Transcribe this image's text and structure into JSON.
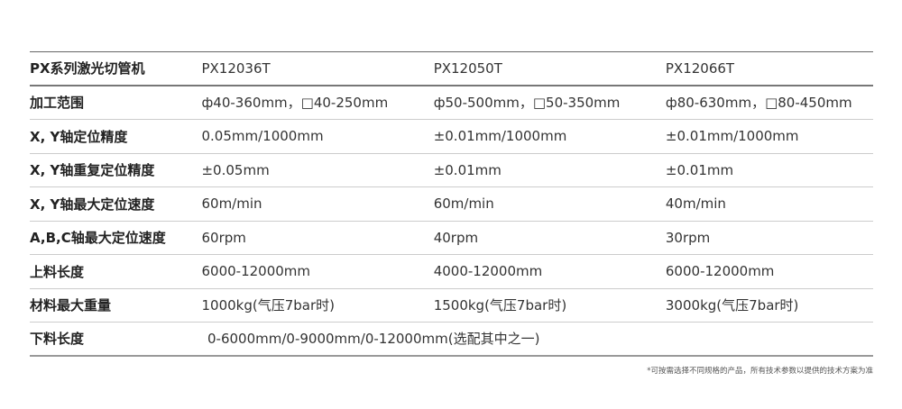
{
  "header": {
    "label": "PX系列激光切管机",
    "models": [
      "PX12036T",
      "PX12050T",
      "PX12066T"
    ]
  },
  "rows": [
    {
      "label": "加工范围",
      "values": [
        "ф40-360mm，□40-250mm",
        "ф50-500mm，□50-350mm",
        "ф80-630mm，□80-450mm"
      ]
    },
    {
      "label": "X, Y轴定位精度",
      "values": [
        "0.05mm/1000mm",
        "±0.01mm/1000mm",
        "±0.01mm/1000mm"
      ]
    },
    {
      "label": "X, Y轴重复定位精度",
      "values": [
        "±0.05mm",
        "±0.01mm",
        "±0.01mm"
      ]
    },
    {
      "label": "X, Y轴最大定位速度",
      "values": [
        "60m/min",
        "60m/min",
        "40m/min"
      ]
    },
    {
      "label": "A,B,C轴最大定位速度",
      "values": [
        "60rpm",
        "40rpm",
        "30rpm"
      ]
    },
    {
      "label": "上料长度",
      "values": [
        "6000-12000mm",
        "4000-12000mm",
        "6000-12000mm"
      ]
    },
    {
      "label": "材料最大重量",
      "values": [
        "1000kg(气压7bar时)",
        "1500kg(气压7bar时)",
        "3000kg(气压7bar时)"
      ]
    }
  ],
  "last_row": {
    "label": "下料长度",
    "value": "0-6000mm/0-9000mm/0-12000mm(选配其中之一)"
  },
  "footnote": "*可按需选择不同规格的产品，所有技术参数以提供的技术方案为准"
}
